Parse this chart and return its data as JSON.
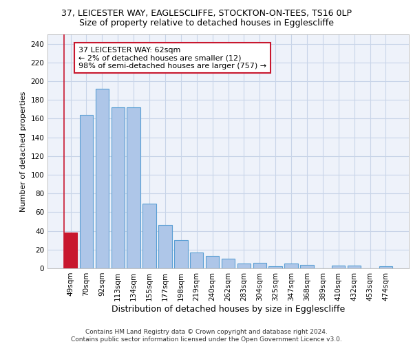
{
  "title1": "37, LEICESTER WAY, EAGLESCLIFFE, STOCKTON-ON-TEES, TS16 0LP",
  "title2": "Size of property relative to detached houses in Egglescliffe",
  "xlabel": "Distribution of detached houses by size in Egglescliffe",
  "ylabel": "Number of detached properties",
  "categories": [
    "49sqm",
    "70sqm",
    "92sqm",
    "113sqm",
    "134sqm",
    "155sqm",
    "177sqm",
    "198sqm",
    "219sqm",
    "240sqm",
    "262sqm",
    "283sqm",
    "304sqm",
    "325sqm",
    "347sqm",
    "368sqm",
    "389sqm",
    "410sqm",
    "432sqm",
    "453sqm",
    "474sqm"
  ],
  "values": [
    38,
    164,
    192,
    172,
    172,
    69,
    46,
    30,
    17,
    13,
    10,
    5,
    6,
    2,
    5,
    4,
    0,
    3,
    3,
    0,
    2
  ],
  "bar_color": "#aec6e8",
  "bar_edge_color": "#5a9fd4",
  "highlight_bar_index": 0,
  "highlight_bar_color": "#c8172e",
  "highlight_bar_edge_color": "#c8172e",
  "annotation_text": "37 LEICESTER WAY: 62sqm\n← 2% of detached houses are smaller (12)\n98% of semi-detached houses are larger (757) →",
  "annotation_box_color": "white",
  "annotation_box_edge_color": "#c8172e",
  "vline_color": "#c8172e",
  "ylim": [
    0,
    250
  ],
  "yticks": [
    0,
    20,
    40,
    60,
    80,
    100,
    120,
    140,
    160,
    180,
    200,
    220,
    240
  ],
  "footer_line1": "Contains HM Land Registry data © Crown copyright and database right 2024.",
  "footer_line2": "Contains public sector information licensed under the Open Government Licence v3.0.",
  "background_color": "#eef2fa",
  "grid_color": "#c8d4e8",
  "title1_fontsize": 9,
  "title2_fontsize": 9,
  "xlabel_fontsize": 9,
  "ylabel_fontsize": 8,
  "tick_fontsize": 7.5,
  "annotation_fontsize": 8,
  "footer_fontsize": 6.5
}
